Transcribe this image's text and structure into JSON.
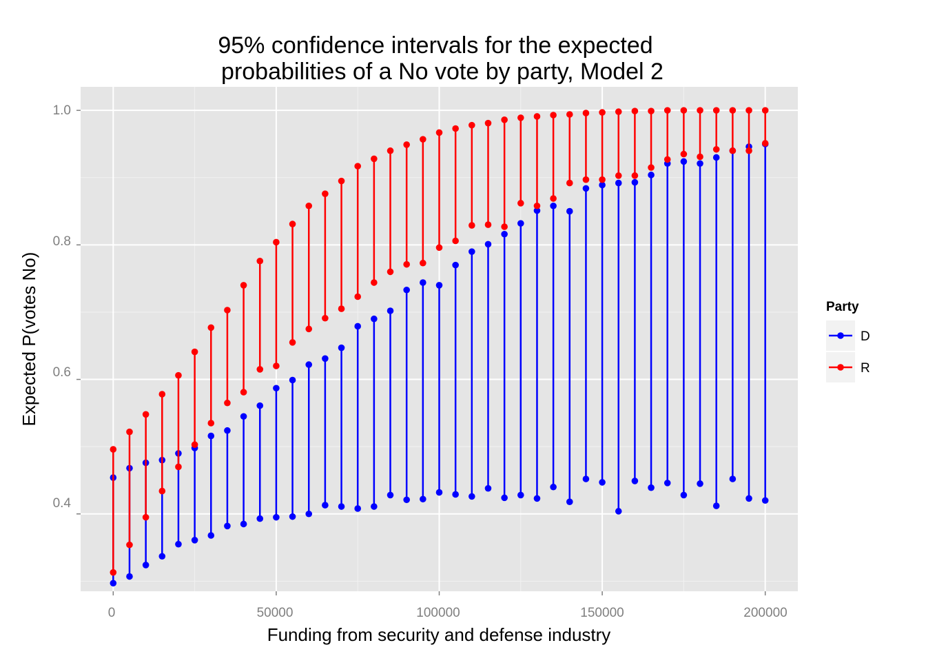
{
  "chart_data": {
    "type": "line",
    "subtype": "interval-pointrange",
    "title": [
      "95% confidence intervals for the expected",
      "probabilities of a No vote by party, Model 2"
    ],
    "xlabel": "Funding from security and defense industry",
    "ylabel": "Expected P(votes No)",
    "xlim": [
      -10000,
      210000
    ],
    "ylim": [
      0.285,
      1.035
    ],
    "xticks": [
      0,
      50000,
      100000,
      150000,
      200000
    ],
    "yticks": [
      0.4,
      0.6,
      0.8,
      1.0
    ],
    "xtick_labels": [
      "0",
      "50000",
      "100000",
      "150000",
      "200000"
    ],
    "ytick_labels": [
      "0.4",
      "0.6",
      "0.8",
      "1.0"
    ],
    "grid": true,
    "background": "#e5e5e5",
    "legend": {
      "title": "Party",
      "position": "right"
    },
    "x": [
      0,
      5000,
      10000,
      15000,
      20000,
      25000,
      30000,
      35000,
      40000,
      45000,
      50000,
      55000,
      60000,
      65000,
      70000,
      75000,
      80000,
      85000,
      90000,
      95000,
      100000,
      105000,
      110000,
      115000,
      120000,
      125000,
      130000,
      135000,
      140000,
      145000,
      150000,
      155000,
      160000,
      165000,
      170000,
      175000,
      180000,
      185000,
      190000,
      195000,
      200000
    ],
    "series": [
      {
        "name": "D",
        "color": "#0000ff",
        "lower": [
          0.297,
          0.307,
          0.324,
          0.337,
          0.355,
          0.361,
          0.368,
          0.382,
          0.385,
          0.393,
          0.395,
          0.396,
          0.4,
          0.413,
          0.411,
          0.408,
          0.411,
          0.428,
          0.421,
          0.422,
          0.432,
          0.429,
          0.426,
          0.438,
          0.424,
          0.428,
          0.423,
          0.44,
          0.418,
          0.452,
          0.447,
          0.404,
          0.449,
          0.439,
          0.446,
          0.428,
          0.445,
          0.412,
          0.452,
          0.423,
          0.42
        ],
        "upper": [
          0.454,
          0.468,
          0.476,
          0.48,
          0.49,
          0.498,
          0.516,
          0.524,
          0.545,
          0.561,
          0.587,
          0.599,
          0.622,
          0.631,
          0.647,
          0.679,
          0.69,
          0.702,
          0.733,
          0.744,
          0.74,
          0.77,
          0.79,
          0.801,
          0.816,
          0.832,
          0.851,
          0.858,
          0.85,
          0.884,
          0.889,
          0.892,
          0.893,
          0.904,
          0.921,
          0.924,
          0.921,
          0.93,
          0.94,
          0.946,
          0.95
        ]
      },
      {
        "name": "R",
        "color": "#ff0000",
        "lower": [
          0.313,
          0.354,
          0.395,
          0.434,
          0.47,
          0.503,
          0.535,
          0.565,
          0.581,
          0.615,
          0.62,
          0.655,
          0.675,
          0.691,
          0.705,
          0.723,
          0.744,
          0.76,
          0.771,
          0.773,
          0.796,
          0.806,
          0.829,
          0.83,
          0.827,
          0.862,
          0.858,
          0.869,
          0.892,
          0.897,
          0.897,
          0.903,
          0.903,
          0.915,
          0.927,
          0.935,
          0.931,
          0.942,
          0.94,
          0.94,
          0.951
        ],
        "upper": [
          0.496,
          0.522,
          0.548,
          0.578,
          0.606,
          0.641,
          0.677,
          0.703,
          0.74,
          0.776,
          0.804,
          0.831,
          0.858,
          0.876,
          0.895,
          0.917,
          0.928,
          0.94,
          0.949,
          0.957,
          0.967,
          0.973,
          0.978,
          0.981,
          0.986,
          0.989,
          0.991,
          0.993,
          0.994,
          0.996,
          0.997,
          0.998,
          0.999,
          0.999,
          1.0,
          1.0,
          1.0,
          1.0,
          1.0,
          1.0,
          1.0
        ]
      }
    ]
  }
}
